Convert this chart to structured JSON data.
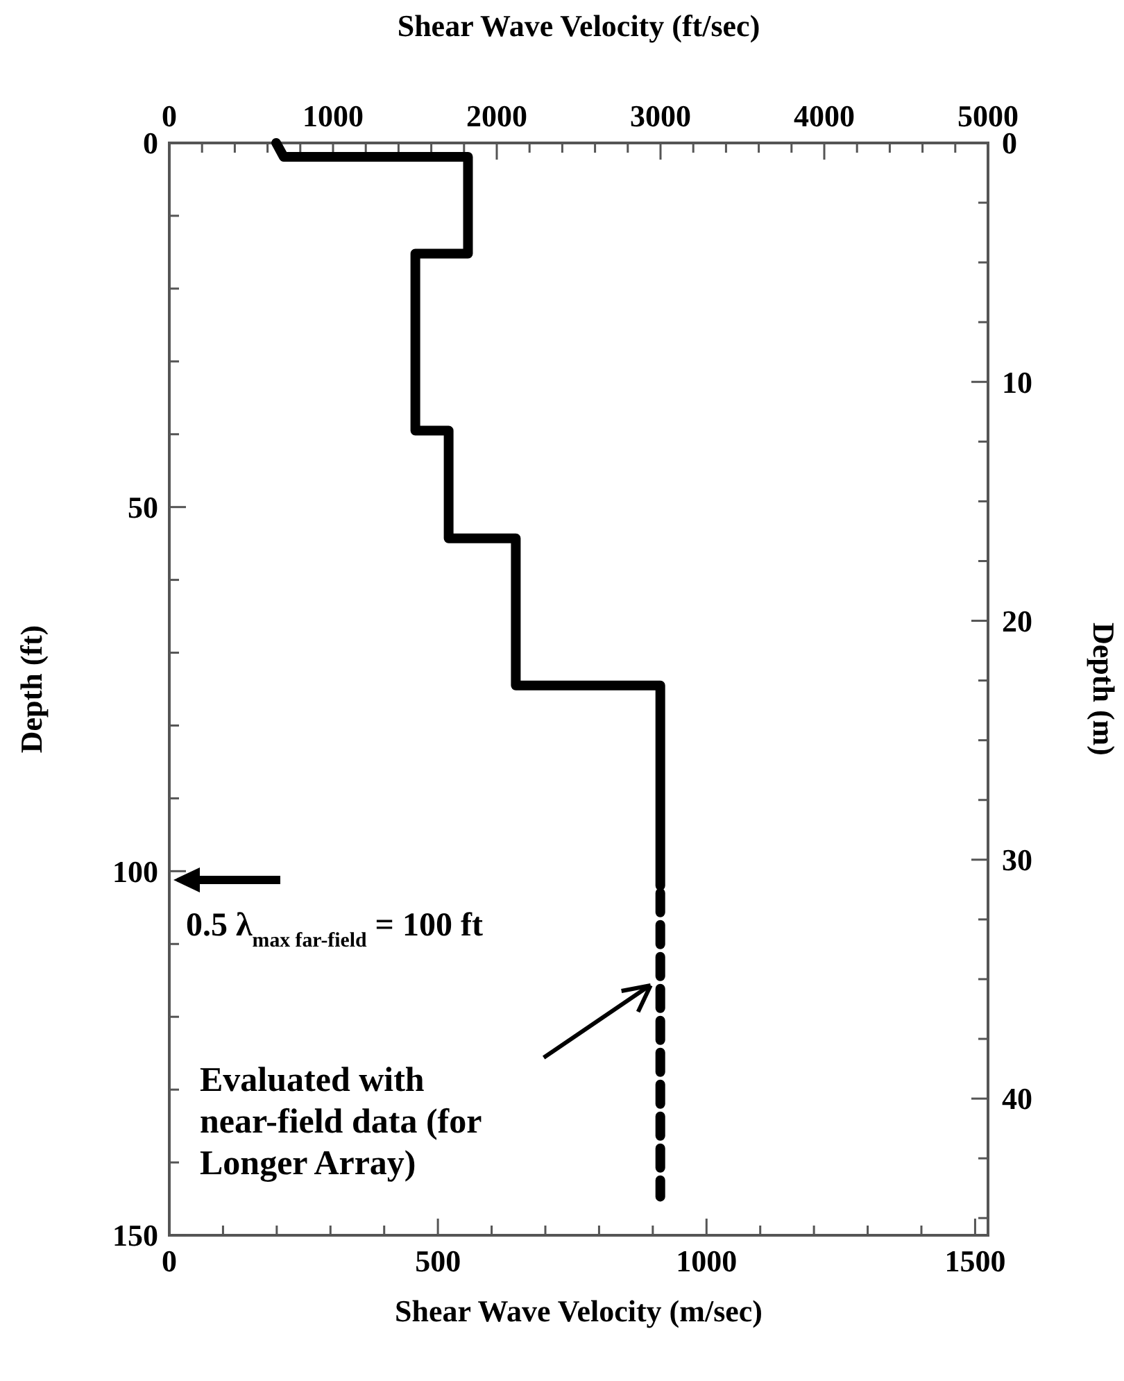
{
  "chart_data": {
    "type": "line",
    "xlabel": "Shear Wave Velocity (m/sec)",
    "x2label": "Shear Wave Velocity (ft/sec)",
    "ylabel": "Depth (ft)",
    "y2label": "Depth (m)",
    "xlim": [
      0,
      1524
    ],
    "xticks": [
      0,
      {
        "value": 100,
        "label": null
      },
      {
        "value": 200,
        "label": null
      },
      {
        "value": 300,
        "label": null
      },
      {
        "value": 400,
        "label": null
      },
      500,
      {
        "value": 600,
        "label": null
      },
      {
        "value": 700,
        "label": null
      },
      {
        "value": 800,
        "label": null
      },
      {
        "value": 900,
        "label": null
      },
      1000,
      {
        "value": 1100,
        "label": null
      },
      {
        "value": 1200,
        "label": null
      },
      {
        "value": 1300,
        "label": null
      },
      {
        "value": 1400,
        "label": null
      },
      1500
    ],
    "x2lim": [
      0,
      5000
    ],
    "x2ticks": [
      0,
      {
        "value": 200,
        "label": null
      },
      {
        "value": 400,
        "label": null
      },
      {
        "value": 600,
        "label": null
      },
      {
        "value": 800,
        "label": null
      },
      1000,
      {
        "value": 1200,
        "label": null
      },
      {
        "value": 1400,
        "label": null
      },
      {
        "value": 1600,
        "label": null
      },
      {
        "value": 1800,
        "label": null
      },
      2000,
      {
        "value": 2200,
        "label": null
      },
      {
        "value": 2400,
        "label": null
      },
      {
        "value": 2600,
        "label": null
      },
      {
        "value": 2800,
        "label": null
      },
      3000,
      {
        "value": 3200,
        "label": null
      },
      {
        "value": 3400,
        "label": null
      },
      {
        "value": 3600,
        "label": null
      },
      {
        "value": 3800,
        "label": null
      },
      4000,
      {
        "value": 4200,
        "label": null
      },
      {
        "value": 4400,
        "label": null
      },
      {
        "value": 4600,
        "label": null
      },
      {
        "value": 4800,
        "label": null
      },
      5000
    ],
    "ylim": [
      150,
      0
    ],
    "yticks": [
      0,
      {
        "value": 10,
        "label": null
      },
      {
        "value": 20,
        "label": null
      },
      {
        "value": 30,
        "label": null
      },
      {
        "value": 40,
        "label": null
      },
      50,
      {
        "value": 60,
        "label": null
      },
      {
        "value": 70,
        "label": null
      },
      {
        "value": 80,
        "label": null
      },
      {
        "value": 90,
        "label": null
      },
      100,
      {
        "value": 110,
        "label": null
      },
      {
        "value": 120,
        "label": null
      },
      {
        "value": 130,
        "label": null
      },
      {
        "value": 140,
        "label": null
      },
      150
    ],
    "y2lim": [
      45.72,
      0
    ],
    "y2ticks": [
      0,
      {
        "value": 2.5,
        "label": null
      },
      {
        "value": 5,
        "label": null
      },
      {
        "value": 7.5,
        "label": null
      },
      10,
      {
        "value": 12.5,
        "label": null
      },
      {
        "value": 15,
        "label": null
      },
      {
        "value": 17.5,
        "label": null
      },
      20,
      {
        "value": 22.5,
        "label": null
      },
      {
        "value": 25,
        "label": null
      },
      {
        "value": 27.5,
        "label": null
      },
      30,
      {
        "value": 32.5,
        "label": null
      },
      {
        "value": 35,
        "label": null
      },
      {
        "value": 37.5,
        "label": null
      },
      40,
      {
        "value": 42.5,
        "label": null
      },
      {
        "value": 45,
        "label": null
      }
    ],
    "grid": false,
    "marker": "none",
    "series": [
      {
        "color": "#000000",
        "line_style": "solid",
        "x": [
          199,
          213,
          556,
          556,
          458,
          458,
          520,
          520,
          645,
          645,
          914,
          914
        ],
        "values": [
          0,
          1.9,
          1.9,
          15.2,
          15.2,
          39.5,
          39.5,
          54.3,
          54.3,
          74.5,
          74.5,
          102
        ]
      },
      {
        "color": "#000000",
        "line_style": "dashed",
        "x": [
          914,
          914
        ],
        "values": [
          103,
          144.7
        ]
      }
    ],
    "annotations": [
      "0.5 λ$_{max far-field}$ = 100 ft",
      "Evaluated with near-field data (for Longer Array)"
    ]
  }
}
